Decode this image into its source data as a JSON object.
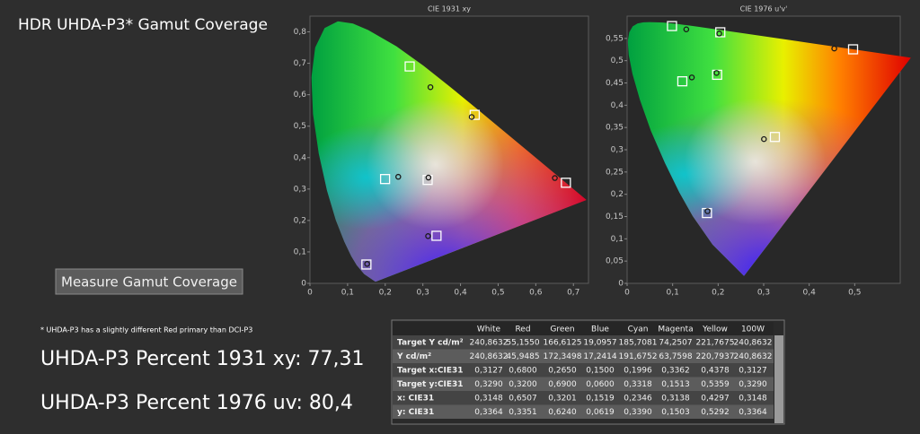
{
  "header": {
    "title": "HDR UHDA-P3* Gamut Coverage"
  },
  "button": {
    "label": "Measure Gamut Coverage"
  },
  "footnote": "* UHDA-P3 has a slightly different Red primary than DCI-P3",
  "results": [
    "UHDA-P3 Percent 1931 xy: 77,31",
    "UHDA-P3 Percent 1976 uv: 80,4"
  ],
  "chart_data": [
    {
      "type": "scatter",
      "title": "CIE 1931 xy",
      "space": "xy",
      "xlim": [
        0,
        0.74
      ],
      "ylim": [
        0,
        0.85
      ],
      "xticks": [
        0,
        {
          "value": 0.1,
          "label": "0,1"
        },
        {
          "value": 0.2,
          "label": "0,2"
        },
        {
          "value": 0.3,
          "label": "0,3"
        },
        {
          "value": 0.4,
          "label": "0,4"
        },
        {
          "value": 0.5,
          "label": "0,5"
        },
        {
          "value": 0.6,
          "label": "0,6"
        },
        {
          "value": 0.7,
          "label": "0,7"
        }
      ],
      "yticks": [
        0,
        {
          "value": 0.1,
          "label": "0,1"
        },
        {
          "value": 0.2,
          "label": "0,2"
        },
        {
          "value": 0.3,
          "label": "0,3"
        },
        {
          "value": 0.4,
          "label": "0,4"
        },
        {
          "value": 0.5,
          "label": "0,5"
        },
        {
          "value": 0.6,
          "label": "0,6"
        },
        {
          "value": 0.7,
          "label": "0,7"
        },
        {
          "value": 0.8,
          "label": "0,8"
        }
      ],
      "series": [
        {
          "marker": "square",
          "color": "#ffffff",
          "x": [
            0.3127,
            0.68,
            0.265,
            0.15,
            0.1996,
            0.3362,
            0.4378
          ],
          "values": [
            0.329,
            0.32,
            0.69,
            0.06,
            0.3318,
            0.1513,
            0.5359
          ]
        },
        {
          "marker": "circle",
          "color": "#1a1a1a",
          "x": [
            0.3148,
            0.6507,
            0.3201,
            0.1519,
            0.2346,
            0.3138,
            0.4297
          ],
          "values": [
            0.3364,
            0.3351,
            0.624,
            0.0619,
            0.339,
            0.1503,
            0.5292
          ]
        }
      ]
    },
    {
      "type": "scatter",
      "title": "CIE 1976 u'v'",
      "space": "uv",
      "xlim": [
        0,
        0.6
      ],
      "ylim": [
        0,
        0.6
      ],
      "xticks": [
        0,
        {
          "value": 0.1,
          "label": "0,1"
        },
        {
          "value": 0.2,
          "label": "0,2"
        },
        {
          "value": 0.3,
          "label": "0,3"
        },
        {
          "value": 0.4,
          "label": "0,4"
        },
        {
          "value": 0.5,
          "label": "0,5"
        }
      ],
      "yticks": [
        0,
        {
          "value": 0.05,
          "label": "0,05"
        },
        {
          "value": 0.1,
          "label": "0,1"
        },
        {
          "value": 0.15,
          "label": "0,15"
        },
        {
          "value": 0.2,
          "label": "0,2"
        },
        {
          "value": 0.25,
          "label": "0,25"
        },
        {
          "value": 0.3,
          "label": "0,3"
        },
        {
          "value": 0.35,
          "label": "0,35"
        },
        {
          "value": 0.4,
          "label": "0,4"
        },
        {
          "value": 0.45,
          "label": "0,45"
        },
        {
          "value": 0.5,
          "label": "0,5"
        },
        {
          "value": 0.55,
          "label": "0,55"
        }
      ],
      "series": [
        {
          "marker": "square",
          "color": "#ffffff",
          "x": [
            0.1978,
            0.4964,
            0.0986,
            0.1754,
            0.1213,
            0.3246,
            0.2047
          ],
          "values": [
            0.4683,
            0.5255,
            0.5777,
            0.1579,
            0.4537,
            0.3287,
            0.5638
          ]
        },
        {
          "marker": "circle",
          "color": "#1a1a1a",
          "x": [
            0.1965,
            0.4551,
            0.13,
            0.1767,
            0.1422,
            0.3006,
            0.2024
          ],
          "values": [
            0.4725,
            0.5273,
            0.5703,
            0.162,
            0.4624,
            0.3239,
            0.5609
          ]
        }
      ]
    }
  ],
  "table": {
    "columns": [
      "White",
      "Red",
      "Green",
      "Blue",
      "Cyan",
      "Magenta",
      "Yellow",
      "100W"
    ],
    "rows": [
      [
        "Target Y cd/m²",
        "240,8632",
        "55,1550",
        "166,6125",
        "19,0957",
        "185,7081",
        "74,2507",
        "221,7675",
        "240,8632"
      ],
      [
        "Y cd/m²",
        "240,8632",
        "45,9485",
        "172,3498",
        "17,2414",
        "191,6752",
        "63,7598",
        "220,7937",
        "240,8632"
      ],
      [
        "Target x:CIE31",
        "0,3127",
        "0,6800",
        "0,2650",
        "0,1500",
        "0,1996",
        "0,3362",
        "0,4378",
        "0,3127"
      ],
      [
        "Target y:CIE31",
        "0,3290",
        "0,3200",
        "0,6900",
        "0,0600",
        "0,3318",
        "0,1513",
        "0,5359",
        "0,3290"
      ],
      [
        "x: CIE31",
        "0,3148",
        "0,6507",
        "0,3201",
        "0,1519",
        "0,2346",
        "0,3138",
        "0,4297",
        "0,3148"
      ],
      [
        "y: CIE31",
        "0,3364",
        "0,3351",
        "0,6240",
        "0,0619",
        "0,3390",
        "0,1503",
        "0,5292",
        "0,3364"
      ]
    ]
  }
}
